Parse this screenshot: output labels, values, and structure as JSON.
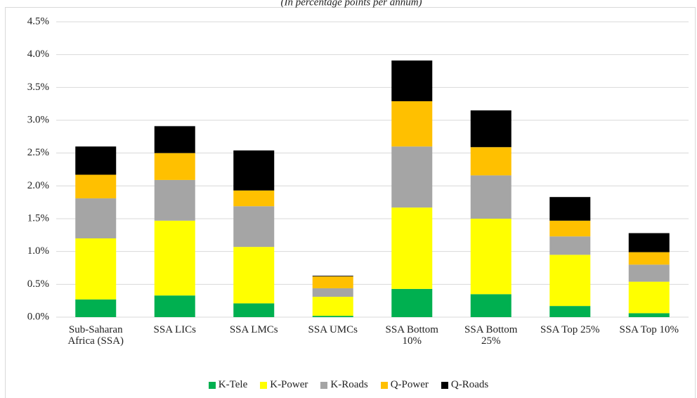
{
  "chart_data": {
    "type": "stacked_bar",
    "subtitle": "(In percentage points per annum)",
    "categories": [
      "Sub-Saharan Africa (SSA)",
      "SSA LICs",
      "SSA LMCs",
      "SSA UMCs",
      "SSA Bottom 10%",
      "SSA Bottom 25%",
      "SSA Top 25%",
      "SSA Top 10%"
    ],
    "series": [
      {
        "name": "K-Tele",
        "color": "#00b050",
        "values": [
          0.27,
          0.33,
          0.21,
          0.02,
          0.43,
          0.35,
          0.17,
          0.06
        ]
      },
      {
        "name": "K-Power",
        "color": "#ffff00",
        "values": [
          0.93,
          1.14,
          0.86,
          0.29,
          1.24,
          1.15,
          0.78,
          0.48
        ]
      },
      {
        "name": "K-Roads",
        "color": "#a5a5a5",
        "values": [
          0.61,
          0.62,
          0.62,
          0.13,
          0.93,
          0.66,
          0.28,
          0.26
        ]
      },
      {
        "name": "Q-Power",
        "color": "#ffc000",
        "values": [
          0.36,
          0.41,
          0.24,
          0.18,
          0.69,
          0.43,
          0.24,
          0.19
        ]
      },
      {
        "name": "Q-Roads",
        "color": "#000000",
        "values": [
          0.43,
          0.41,
          0.61,
          0.01,
          0.62,
          0.56,
          0.36,
          0.29
        ]
      }
    ],
    "ylim": [
      0,
      4.5
    ],
    "yticks": [
      {
        "value": 0,
        "label": "0.0%"
      },
      {
        "value": 0.5,
        "label": "0.5%"
      },
      {
        "value": 1,
        "label": "1.0%"
      },
      {
        "value": 1.5,
        "label": "1.5%"
      },
      {
        "value": 2,
        "label": "2.0%"
      },
      {
        "value": 2.5,
        "label": "2.5%"
      },
      {
        "value": 3,
        "label": "3.0%"
      },
      {
        "value": 3.5,
        "label": "3.5%"
      },
      {
        "value": 4,
        "label": "4.0%"
      },
      {
        "value": 4.5,
        "label": "4.5%"
      }
    ],
    "grid": true
  }
}
